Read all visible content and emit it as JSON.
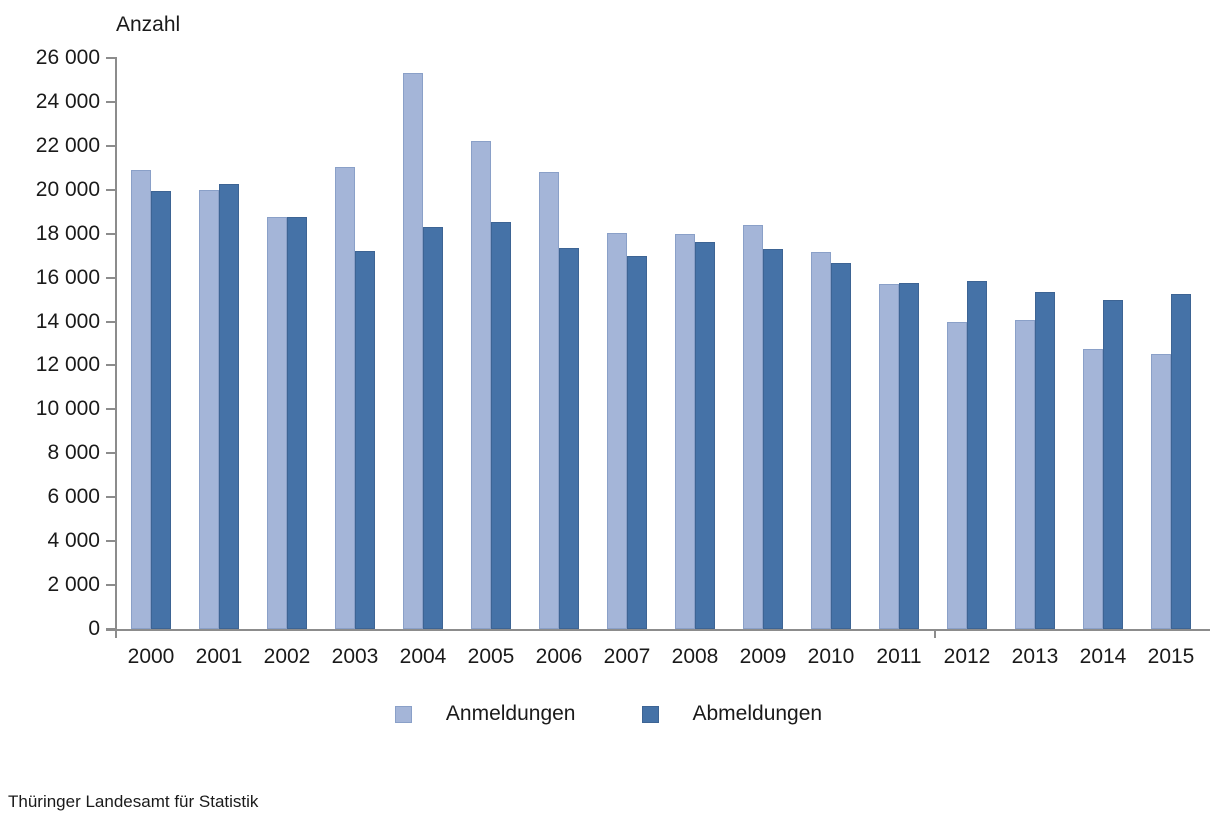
{
  "source_note": "Thüringer Landesamt für Statistik",
  "colors": {
    "axis": "#8C8C8C",
    "text": "#1A1A1A",
    "background": "#FFFFFF",
    "anmeldungen_fill": "#A4B5D8",
    "anmeldungen_border": "#8AA0C8",
    "abmeldungen_fill": "#4572A7",
    "abmeldungen_border": "#3D6494"
  },
  "chart_data": {
    "type": "bar",
    "title": "Anzahl",
    "categories": [
      "2000",
      "2001",
      "2002",
      "2003",
      "2004",
      "2005",
      "2006",
      "2007",
      "2008",
      "2009",
      "2010",
      "2011",
      "2012",
      "2013",
      "2014",
      "2015"
    ],
    "series": [
      {
        "name": "Anmeldungen",
        "color": "#A4B5D8",
        "border_color": "#8AA0C8",
        "values": [
          20900,
          20000,
          18750,
          21050,
          25300,
          22200,
          20800,
          18050,
          18000,
          18400,
          17150,
          15700,
          14000,
          14050,
          12750,
          12500
        ]
      },
      {
        "name": "Abmeldungen",
        "color": "#4572A7",
        "border_color": "#3D6494",
        "values": [
          19950,
          20250,
          18750,
          17200,
          18300,
          18550,
          17350,
          17000,
          17600,
          17300,
          16650,
          15750,
          15850,
          15350,
          15000,
          15250
        ]
      }
    ],
    "ylim": [
      0,
      26000
    ],
    "ytick_step": 2000,
    "ytick_labels": [
      "0",
      "2 000",
      "4 000",
      "6 000",
      "8 000",
      "10 000",
      "12 000",
      "14 000",
      "16 000",
      "18 000",
      "20 000",
      "22 000",
      "24 000",
      "26 000"
    ],
    "grid": false,
    "legend_position": "bottom",
    "xlabel": "",
    "ylabel": "Anzahl"
  }
}
